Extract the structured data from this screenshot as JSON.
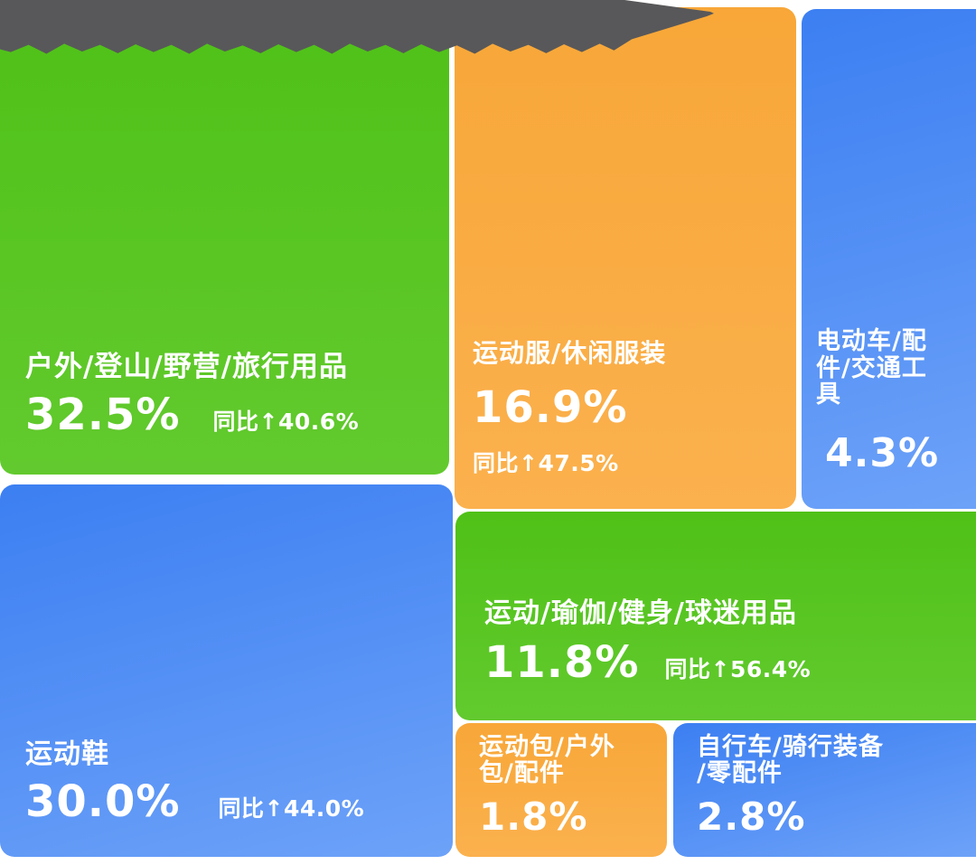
{
  "colors": {
    "green": "#4fc117",
    "green_light": "#62ca2e",
    "orange": "#f8a738",
    "orange_light": "#fbb14e",
    "blue": "#3c7ff2",
    "blue_light": "#6da2f8",
    "title_band_gray": "#58585a",
    "text": "#ffffff",
    "background": "#ffffff"
  },
  "chart_data": {
    "type": "treemap",
    "title": "",
    "legend_position": "none",
    "value_unit": "%",
    "items": [
      {
        "name": "户外/登山/野营/旅行用品",
        "share_label": "32.5%",
        "share_pct": 32.5,
        "yoy_label": "同比↑40.6%",
        "yoy_pct": 40.6,
        "color": "green"
      },
      {
        "name": "运动服/休闲服装",
        "share_label": "16.9%",
        "share_pct": 16.9,
        "yoy_label": "同比↑47.5%",
        "yoy_pct": 47.5,
        "color": "orange"
      },
      {
        "name": "电动车/配件/交通工具",
        "share_label": "4.3%",
        "share_pct": 4.3,
        "yoy_label": null,
        "yoy_pct": null,
        "color": "blue"
      },
      {
        "name": "运动鞋",
        "share_label": "30.0%",
        "share_pct": 30.0,
        "yoy_label": "同比↑44.0%",
        "yoy_pct": 44.0,
        "color": "blue"
      },
      {
        "name": "运动/瑜伽/健身/球迷用品",
        "share_label": "11.8%",
        "share_pct": 11.8,
        "yoy_label": "同比↑56.4%",
        "yoy_pct": 56.4,
        "color": "green"
      },
      {
        "name": "运动包/户外包/配件",
        "share_label": "1.8%",
        "share_pct": 1.8,
        "yoy_label": null,
        "yoy_pct": null,
        "color": "orange"
      },
      {
        "name": "自行车/骑行装备/零配件",
        "share_label": "2.8%",
        "share_pct": 2.8,
        "yoy_label": null,
        "yoy_pct": null,
        "color": "blue"
      }
    ]
  }
}
